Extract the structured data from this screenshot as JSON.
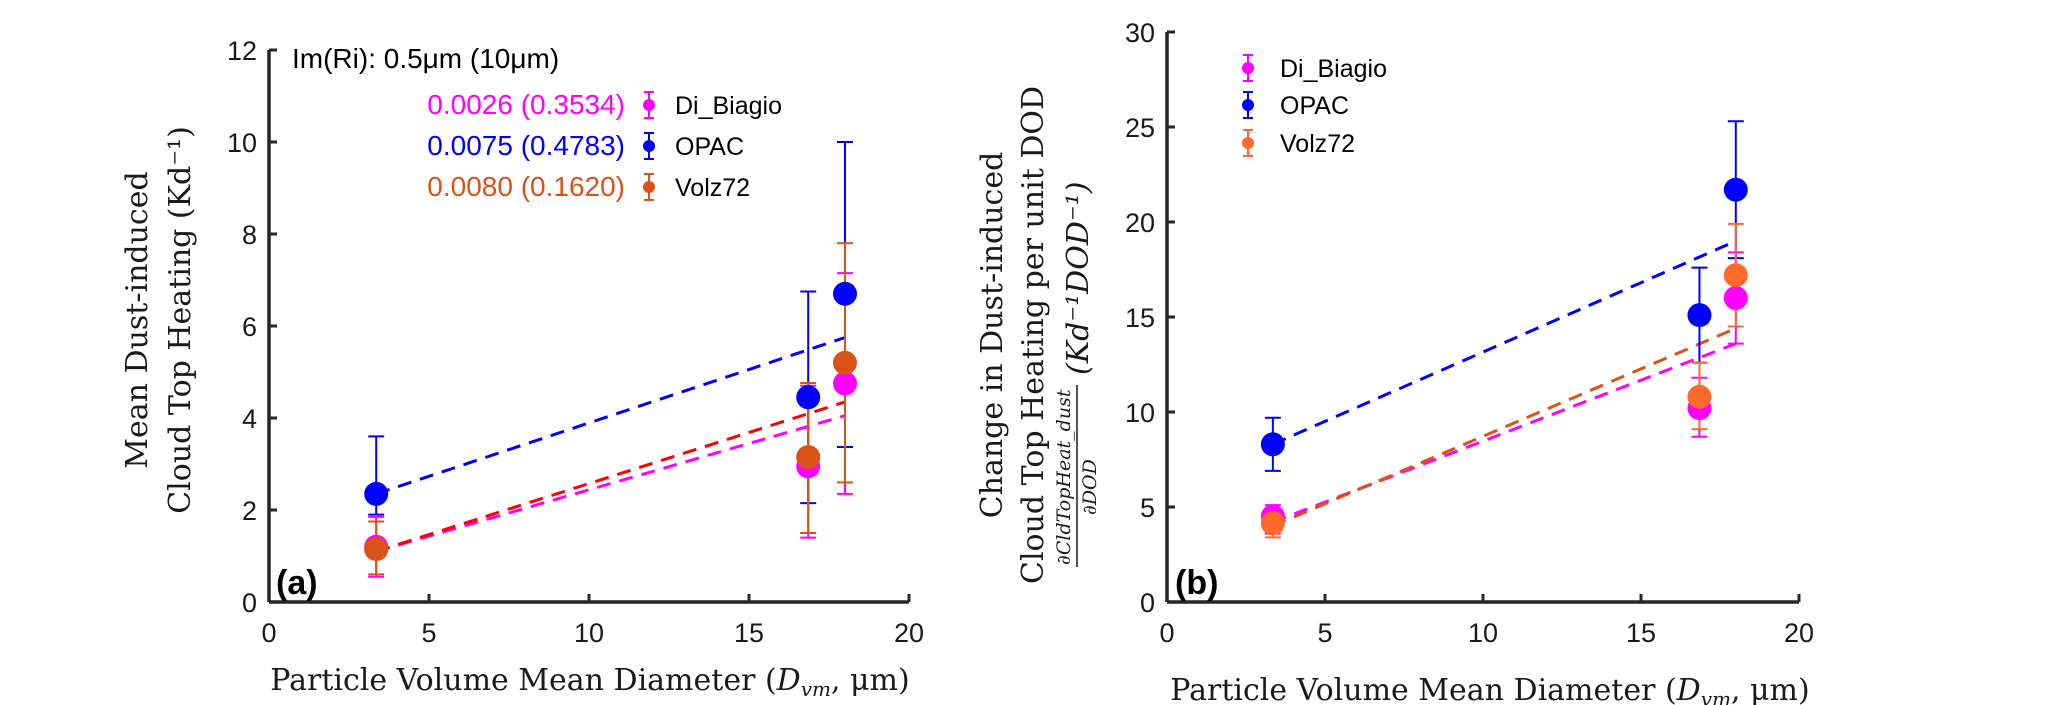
{
  "chart_data": [
    {
      "type": "scatter",
      "panel_label": "(a)",
      "xlabel": "Particle Volume Mean Diameter (D_vm, μm)",
      "xlabel_main": "Particle Volume Mean Diameter (",
      "xlabel_math": "D",
      "xlabel_sub": "vm",
      "xlabel_tail": ", μm)",
      "ylabel_line1": "Mean Dust-induced",
      "ylabel_line2": "Cloud Top Heating (Kd⁻¹)",
      "xlim": [
        0,
        20
      ],
      "ylim": [
        0,
        12
      ],
      "xticks": [
        0,
        5,
        10,
        15,
        20
      ],
      "yticks": [
        0,
        2,
        4,
        6,
        8,
        10,
        12
      ],
      "grid": false,
      "annotation_header": "Im(Ri): 0.5μm (10μm)",
      "legend_position": "top-right",
      "series": [
        {
          "name": "Di_Biagio",
          "color": "#ff00ff",
          "stat": "0.0026 (0.3534)",
          "x": [
            3.35,
            16.85,
            18.0
          ],
          "y": [
            1.2,
            2.95,
            4.75
          ],
          "err_low": [
            0.55,
            1.4,
            2.35
          ],
          "err_high": [
            1.85,
            4.7,
            7.15
          ],
          "fit": {
            "x": [
              3.35,
              18.0
            ],
            "y": [
              1.1,
              4.05
            ]
          },
          "fit_color": "#ff00ff"
        },
        {
          "name": "OPAC",
          "color": "#0000ff",
          "stat": "0.0075 (0.4783)",
          "x": [
            3.35,
            16.85,
            18.0
          ],
          "y": [
            2.35,
            4.45,
            6.7
          ],
          "err_low": [
            1.9,
            2.15,
            3.37
          ],
          "err_high": [
            3.6,
            6.75,
            10.0
          ],
          "fit": {
            "x": [
              3.35,
              18.0
            ],
            "y": [
              2.35,
              5.75
            ]
          },
          "fit_color": "#0000ff"
        },
        {
          "name": "Volz72",
          "color": "#d95319",
          "stat": "0.0080 (0.1620)",
          "x": [
            3.35,
            16.85,
            18.0
          ],
          "y": [
            1.15,
            3.15,
            5.2
          ],
          "err_low": [
            0.6,
            1.5,
            2.6
          ],
          "err_high": [
            1.75,
            4.76,
            7.8
          ],
          "fit": {
            "x": [
              3.35,
              18.0
            ],
            "y": [
              1.1,
              4.35
            ]
          },
          "fit_color": "#ff0000"
        }
      ]
    },
    {
      "type": "scatter",
      "panel_label": "(b)",
      "xlabel": "Particle Volume Mean Diameter (D_vm, μm)",
      "xlabel_main": "Particle Volume Mean Diameter (",
      "xlabel_math": "D",
      "xlabel_sub": "vm",
      "xlabel_tail": ", μm)",
      "ylabel_line1": "Change in Dust-induced",
      "ylabel_line2": "Cloud Top Heating per unit DOD",
      "ylabel_line3_frac_num": "∂CldTopHeat_dust",
      "ylabel_line3_frac_den": "∂DOD",
      "ylabel_line3_units": "(Kd⁻¹DOD⁻¹)",
      "xlim": [
        0,
        20
      ],
      "ylim": [
        0,
        30
      ],
      "xticks": [
        0,
        5,
        10,
        15,
        20
      ],
      "yticks": [
        0,
        5,
        10,
        15,
        20,
        25,
        30
      ],
      "grid": false,
      "legend_position": "top-left",
      "series": [
        {
          "name": "Di_Biagio",
          "color": "#ff00ff",
          "x": [
            3.35,
            16.85,
            18.0
          ],
          "y": [
            4.5,
            10.2,
            16.0
          ],
          "err_low": [
            3.6,
            8.7,
            13.6
          ],
          "err_high": [
            5.1,
            11.8,
            18.4
          ],
          "fit": {
            "x": [
              3.35,
              18.0
            ],
            "y": [
              4.2,
              13.6
            ]
          },
          "fit_color": "#ff00ff"
        },
        {
          "name": "OPAC",
          "color": "#0000ff",
          "x": [
            3.35,
            16.85,
            18.0
          ],
          "y": [
            8.3,
            15.1,
            21.7
          ],
          "err_low": [
            6.9,
            12.6,
            18.1
          ],
          "err_high": [
            9.7,
            17.6,
            25.3
          ],
          "fit": {
            "x": [
              3.35,
              18.0
            ],
            "y": [
              8.3,
              19.0
            ]
          },
          "fit_color": "#0000ff"
        },
        {
          "name": "Volz72",
          "color": "#ff6929",
          "x": [
            3.35,
            16.85,
            18.0
          ],
          "y": [
            4.15,
            10.8,
            17.2
          ],
          "err_low": [
            3.4,
            9.1,
            14.5
          ],
          "err_high": [
            4.9,
            12.6,
            19.9
          ],
          "fit": {
            "x": [
              3.35,
              18.0
            ],
            "y": [
              4.0,
              14.4
            ]
          },
          "fit_color": "#d95319"
        }
      ]
    }
  ]
}
